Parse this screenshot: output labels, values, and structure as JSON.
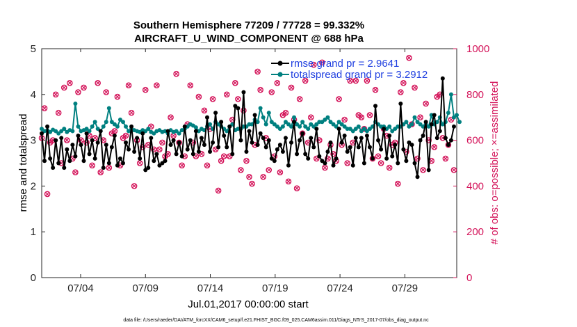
{
  "chart_data": {
    "type": "line",
    "title": "Southern Hemisphere 77209 / 77728 = 99.332%",
    "subtitle": "AIRCRAFT_U_WIND_COMPONENT @ 688 hPa",
    "xlabel": "Jul.01,2017 00:00:00 start",
    "ylabel_left": "rmse and totalspread",
    "ylabel_right": "# of obs: o=possible; ×=assimilated",
    "footnote": "data file: /Users/raeder/DAI/ATM_forcXX/CAM6_setup/f.e21.FHIST_BGC.f09_025.CAM6assim.011/Diags_NTrS_2017-07/obs_diag_output.nc",
    "xlim": [
      1,
      33
    ],
    "ylim_left": [
      0,
      5
    ],
    "ylim_right": [
      0,
      1000
    ],
    "xticks": [
      4,
      9,
      14,
      19,
      24,
      29
    ],
    "xtick_labels": [
      "07/04",
      "07/09",
      "07/14",
      "07/19",
      "07/24",
      "07/29"
    ],
    "yticks_left": [
      "0",
      "1",
      "2",
      "3",
      "4",
      "5"
    ],
    "yticks_right": [
      "0",
      "200",
      "400",
      "600",
      "800",
      "1000"
    ],
    "colors": {
      "rmse": "#000000",
      "spread": "#008080",
      "obs": "#d4145a",
      "legend_text": "#1f3fe0"
    },
    "series": [
      {
        "name": "rmse grand pr = 2.9641",
        "values": [
          3.15,
          2.55,
          3.3,
          2.6,
          2.4,
          3.0,
          2.5,
          3.05,
          2.4,
          2.8,
          2.55,
          2.9,
          2.65,
          3.1,
          2.9,
          2.55,
          3.15,
          2.7,
          3.0,
          2.6,
          2.95,
          3.2,
          2.4,
          2.9,
          2.5,
          2.85,
          3.1,
          2.45,
          2.6,
          2.5,
          2.95,
          2.8,
          3.3,
          2.75,
          3.05,
          2.6,
          3.15,
          2.35,
          2.4,
          3.05,
          2.55,
          2.7,
          2.45,
          2.5,
          2.55,
          3.2,
          2.9,
          3.0,
          2.7,
          2.95,
          2.65,
          3.3,
          2.8,
          3.0,
          2.7,
          3.2,
          2.75,
          3.05,
          2.9,
          3.5,
          2.75,
          2.95,
          3.6,
          2.85,
          3.4,
          3.1,
          2.85,
          3.3,
          2.7,
          3.75,
          3.7,
          3.0,
          4.05,
          2.75,
          3.2,
          2.95,
          3.55,
          2.9,
          3.15,
          3.05,
          2.85,
          3.0,
          2.6,
          2.55,
          2.8,
          2.9,
          2.75,
          3.05,
          2.45,
          2.95,
          3.4,
          2.7,
          3.0,
          3.15,
          2.7,
          2.6,
          3.05,
          2.85,
          3.25,
          2.65,
          2.55,
          2.5,
          2.75,
          2.95,
          2.45,
          2.6,
          3.25,
          2.95,
          3.1,
          2.75,
          2.85,
          2.45,
          3.05,
          2.85,
          3.05,
          2.5,
          3.1,
          2.85,
          2.6,
          3.75,
          3.0,
          2.8,
          3.25,
          2.6,
          3.1,
          2.65,
          2.9,
          2.5,
          3.8,
          2.8,
          2.55,
          2.95,
          2.9,
          2.5,
          2.2,
          3.0,
          3.1,
          3.4,
          2.35,
          3.35,
          3.55,
          3.05,
          3.2,
          4.35,
          3.05,
          2.9,
          3.0,
          3.3
        ]
      },
      {
        "name": "totalspread grand pr = 3.2912",
        "values": [
          3.25,
          3.2,
          3.22,
          3.18,
          3.23,
          3.2,
          3.15,
          3.2,
          3.25,
          3.18,
          3.22,
          3.2,
          3.8,
          3.3,
          3.2,
          3.22,
          3.25,
          3.2,
          3.3,
          3.4,
          3.25,
          3.2,
          3.3,
          3.4,
          3.7,
          3.4,
          3.35,
          3.3,
          3.45,
          3.4,
          3.3,
          3.2,
          3.25,
          3.22,
          3.2,
          3.18,
          3.22,
          3.2,
          3.25,
          3.18,
          3.15,
          3.2,
          3.22,
          3.18,
          3.2,
          3.15,
          3.22,
          3.18,
          3.2,
          3.15,
          3.22,
          3.25,
          3.3,
          3.35,
          3.32,
          3.28,
          3.2,
          3.25,
          3.22,
          3.3,
          3.35,
          3.25,
          3.4,
          3.35,
          3.3,
          3.25,
          3.2,
          3.3,
          3.35,
          3.22,
          3.25,
          3.25,
          3.3,
          3.3,
          3.35,
          3.35,
          3.45,
          3.4,
          3.7,
          3.5,
          3.35,
          3.6,
          3.4,
          3.35,
          3.3,
          3.25,
          3.3,
          3.4,
          3.35,
          3.3,
          3.5,
          3.35,
          3.3,
          3.4,
          3.3,
          3.25,
          3.35,
          3.3,
          3.35,
          3.4,
          3.4,
          3.45,
          3.5,
          3.4,
          3.35,
          3.3,
          3.4,
          3.35,
          3.3,
          3.25,
          3.25,
          3.2,
          3.25,
          3.3,
          3.2,
          3.25,
          3.2,
          3.25,
          3.3,
          3.4,
          3.35,
          3.3,
          3.3,
          3.25,
          3.3,
          3.2,
          3.25,
          3.3,
          3.3,
          3.35,
          3.4,
          3.3,
          3.35,
          3.5,
          3.4,
          3.35,
          3.3,
          3.35,
          3.3,
          3.55,
          3.35,
          3.4,
          3.5,
          3.35,
          3.4,
          3.6,
          4.0,
          3.5,
          3.55,
          3.4
        ]
      },
      {
        "name": "obs possible",
        "values": [
          610,
          740,
          365,
          590,
          600,
          800,
          720,
          500,
          830,
          600,
          850,
          520,
          460,
          810,
          600,
          830,
          590,
          620,
          490,
          610,
          850,
          460,
          600,
          810,
          480,
          630,
          640,
          790,
          490,
          610,
          620,
          840,
          720,
          400,
          600,
          500,
          570,
          820,
          580,
          660,
          560,
          840,
          560,
          590,
          530,
          540,
          700,
          620,
          890,
          590,
          490,
          530,
          670,
          840,
          590,
          530,
          790,
          540,
          730,
          490,
          650,
          780,
          560,
          380,
          510,
          530,
          800,
          530,
          690,
          850,
          780,
          470,
          730,
          510,
          440,
          410,
          580,
          900,
          820,
          440,
          610,
          470,
          810,
          530,
          850,
          460,
          710,
          720,
          420,
          830,
          690,
          390,
          780,
          630,
          860,
          590,
          700,
          930,
          520,
          600,
          940,
          480,
          520,
          580,
          540,
          510,
          780,
          580,
          690,
          500,
          860,
          590,
          860,
          710,
          700,
          650,
          860,
          710,
          520,
          820,
          530,
          500,
          650,
          620,
          480,
          580,
          590,
          410,
          810,
          850,
          550,
          960,
          670,
          830,
          520,
          700,
          470,
          760,
          600,
          510,
          570,
          790,
          800,
          610,
          520,
          580,
          690,
          470
        ]
      }
    ]
  }
}
